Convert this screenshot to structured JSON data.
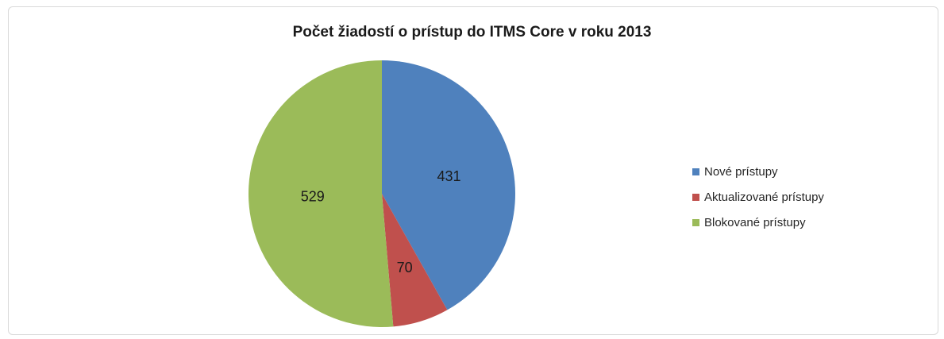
{
  "chart_data": {
    "type": "pie",
    "title": "Počet žiadostí o prístup do ITMS Core v roku 2013",
    "categories": [
      "Nové prístupy",
      "Aktualizované prístupy",
      "Blokované prístupy"
    ],
    "values": [
      431,
      70,
      529
    ],
    "colors": [
      "#4f81bd",
      "#c0504d",
      "#9bbb59"
    ],
    "start_angle": "12 o'clock, clockwise",
    "legend_position": "right",
    "data_labels": [
      "431",
      "70",
      "529"
    ]
  }
}
